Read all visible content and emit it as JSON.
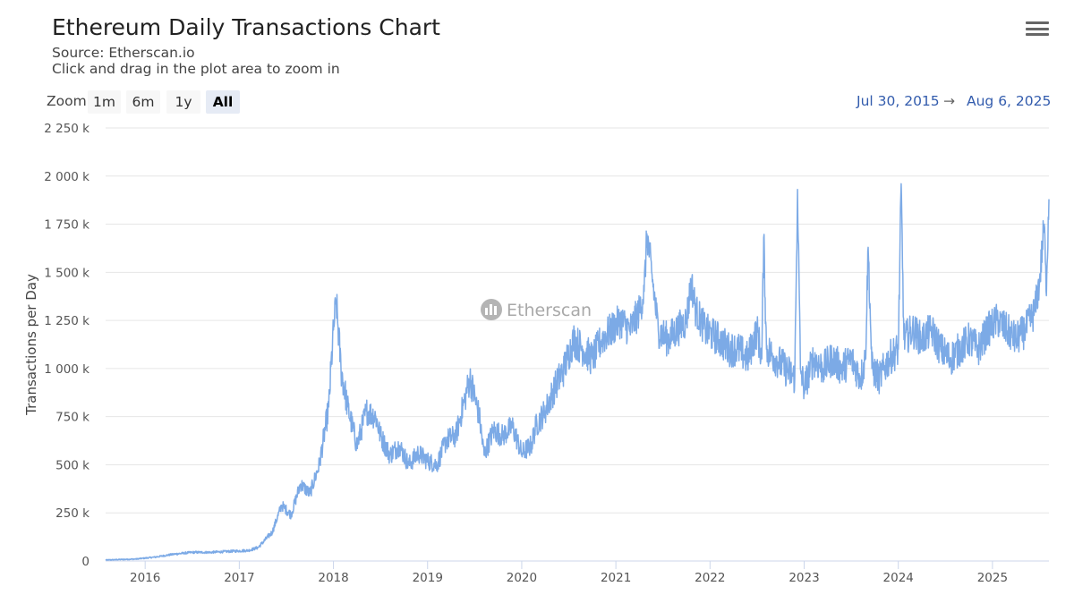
{
  "header": {
    "title": "Ethereum Daily Transactions Chart",
    "source": "Source: Etherscan.io",
    "hint": "Click and drag in the plot area to zoom in"
  },
  "zoom": {
    "label": "Zoom",
    "buttons": [
      "1m",
      "6m",
      "1y",
      "All"
    ],
    "active": "All"
  },
  "range": {
    "from": "Jul 30, 2015",
    "arrow": "→",
    "to": "Aug 6, 2025"
  },
  "watermark": "Etherscan",
  "colors": {
    "series": "#7caae6",
    "grid": "#e6e6e6",
    "accent": "#335cad"
  },
  "chart_data": {
    "type": "line",
    "title": "Ethereum Daily Transactions Chart",
    "subtitle": "Source: Etherscan.io",
    "xlabel": "",
    "ylabel": "Transactions per Day",
    "x_range": [
      2015.58,
      2025.6
    ],
    "ylim": [
      0,
      2250000
    ],
    "y_ticks": [
      0,
      250000,
      500000,
      750000,
      1000000,
      1250000,
      1500000,
      1750000,
      2000000,
      2250000
    ],
    "y_tick_labels": [
      "0",
      "250 k",
      "500 k",
      "750 k",
      "1 000 k",
      "1 250 k",
      "1 500 k",
      "1 750 k",
      "2 000 k",
      "2 250 k"
    ],
    "x_ticks": [
      2016,
      2017,
      2018,
      2019,
      2020,
      2021,
      2022,
      2023,
      2024,
      2025
    ],
    "x_tick_labels": [
      "2016",
      "2017",
      "2018",
      "2019",
      "2020",
      "2021",
      "2022",
      "2023",
      "2024",
      "2025"
    ],
    "grid": true,
    "series": [
      {
        "name": "Transactions per Day",
        "points": [
          [
            2015.58,
            5000
          ],
          [
            2015.75,
            8000
          ],
          [
            2015.9,
            10000
          ],
          [
            2016.1,
            20000
          ],
          [
            2016.3,
            35000
          ],
          [
            2016.5,
            45000
          ],
          [
            2016.7,
            45000
          ],
          [
            2016.9,
            50000
          ],
          [
            2017.1,
            55000
          ],
          [
            2017.2,
            70000
          ],
          [
            2017.35,
            150000
          ],
          [
            2017.45,
            290000
          ],
          [
            2017.55,
            240000
          ],
          [
            2017.65,
            400000
          ],
          [
            2017.75,
            350000
          ],
          [
            2017.85,
            500000
          ],
          [
            2017.95,
            800000
          ],
          [
            2018.0,
            1200000
          ],
          [
            2018.03,
            1350000
          ],
          [
            2018.08,
            1000000
          ],
          [
            2018.15,
            800000
          ],
          [
            2018.25,
            600000
          ],
          [
            2018.35,
            780000
          ],
          [
            2018.45,
            750000
          ],
          [
            2018.5,
            650000
          ],
          [
            2018.6,
            550000
          ],
          [
            2018.7,
            600000
          ],
          [
            2018.8,
            500000
          ],
          [
            2018.9,
            560000
          ],
          [
            2019.0,
            520000
          ],
          [
            2019.1,
            500000
          ],
          [
            2019.2,
            630000
          ],
          [
            2019.3,
            650000
          ],
          [
            2019.4,
            850000
          ],
          [
            2019.45,
            950000
          ],
          [
            2019.55,
            750000
          ],
          [
            2019.6,
            550000
          ],
          [
            2019.7,
            680000
          ],
          [
            2019.8,
            650000
          ],
          [
            2019.9,
            700000
          ],
          [
            2020.0,
            560000
          ],
          [
            2020.1,
            600000
          ],
          [
            2020.15,
            700000
          ],
          [
            2020.25,
            780000
          ],
          [
            2020.35,
            900000
          ],
          [
            2020.45,
            1000000
          ],
          [
            2020.55,
            1150000
          ],
          [
            2020.65,
            1100000
          ],
          [
            2020.75,
            1050000
          ],
          [
            2020.85,
            1150000
          ],
          [
            2020.95,
            1200000
          ],
          [
            2021.05,
            1250000
          ],
          [
            2021.15,
            1200000
          ],
          [
            2021.25,
            1300000
          ],
          [
            2021.3,
            1400000
          ],
          [
            2021.33,
            1700000
          ],
          [
            2021.38,
            1500000
          ],
          [
            2021.45,
            1200000
          ],
          [
            2021.55,
            1150000
          ],
          [
            2021.65,
            1200000
          ],
          [
            2021.75,
            1250000
          ],
          [
            2021.8,
            1450000
          ],
          [
            2021.85,
            1300000
          ],
          [
            2021.95,
            1200000
          ],
          [
            2022.1,
            1150000
          ],
          [
            2022.2,
            1100000
          ],
          [
            2022.3,
            1100000
          ],
          [
            2022.4,
            1050000
          ],
          [
            2022.5,
            1200000
          ],
          [
            2022.55,
            1050000
          ],
          [
            2022.57,
            1680000
          ],
          [
            2022.6,
            1100000
          ],
          [
            2022.7,
            1050000
          ],
          [
            2022.8,
            1000000
          ],
          [
            2022.9,
            950000
          ],
          [
            2022.93,
            1930000
          ],
          [
            2022.96,
            1000000
          ],
          [
            2023.0,
            900000
          ],
          [
            2023.1,
            1050000
          ],
          [
            2023.2,
            1000000
          ],
          [
            2023.3,
            1050000
          ],
          [
            2023.4,
            1000000
          ],
          [
            2023.5,
            1050000
          ],
          [
            2023.6,
            950000
          ],
          [
            2023.65,
            1050000
          ],
          [
            2023.68,
            1630000
          ],
          [
            2023.72,
            1000000
          ],
          [
            2023.8,
            950000
          ],
          [
            2023.9,
            1050000
          ],
          [
            2024.0,
            1100000
          ],
          [
            2024.03,
            1960000
          ],
          [
            2024.06,
            1150000
          ],
          [
            2024.15,
            1200000
          ],
          [
            2024.25,
            1150000
          ],
          [
            2024.35,
            1200000
          ],
          [
            2024.45,
            1100000
          ],
          [
            2024.55,
            1050000
          ],
          [
            2024.65,
            1100000
          ],
          [
            2024.75,
            1150000
          ],
          [
            2024.85,
            1100000
          ],
          [
            2024.95,
            1200000
          ],
          [
            2025.05,
            1250000
          ],
          [
            2025.15,
            1200000
          ],
          [
            2025.25,
            1150000
          ],
          [
            2025.35,
            1200000
          ],
          [
            2025.45,
            1300000
          ],
          [
            2025.5,
            1450000
          ],
          [
            2025.55,
            1750000
          ],
          [
            2025.57,
            1400000
          ],
          [
            2025.6,
            1880000
          ]
        ]
      }
    ]
  }
}
